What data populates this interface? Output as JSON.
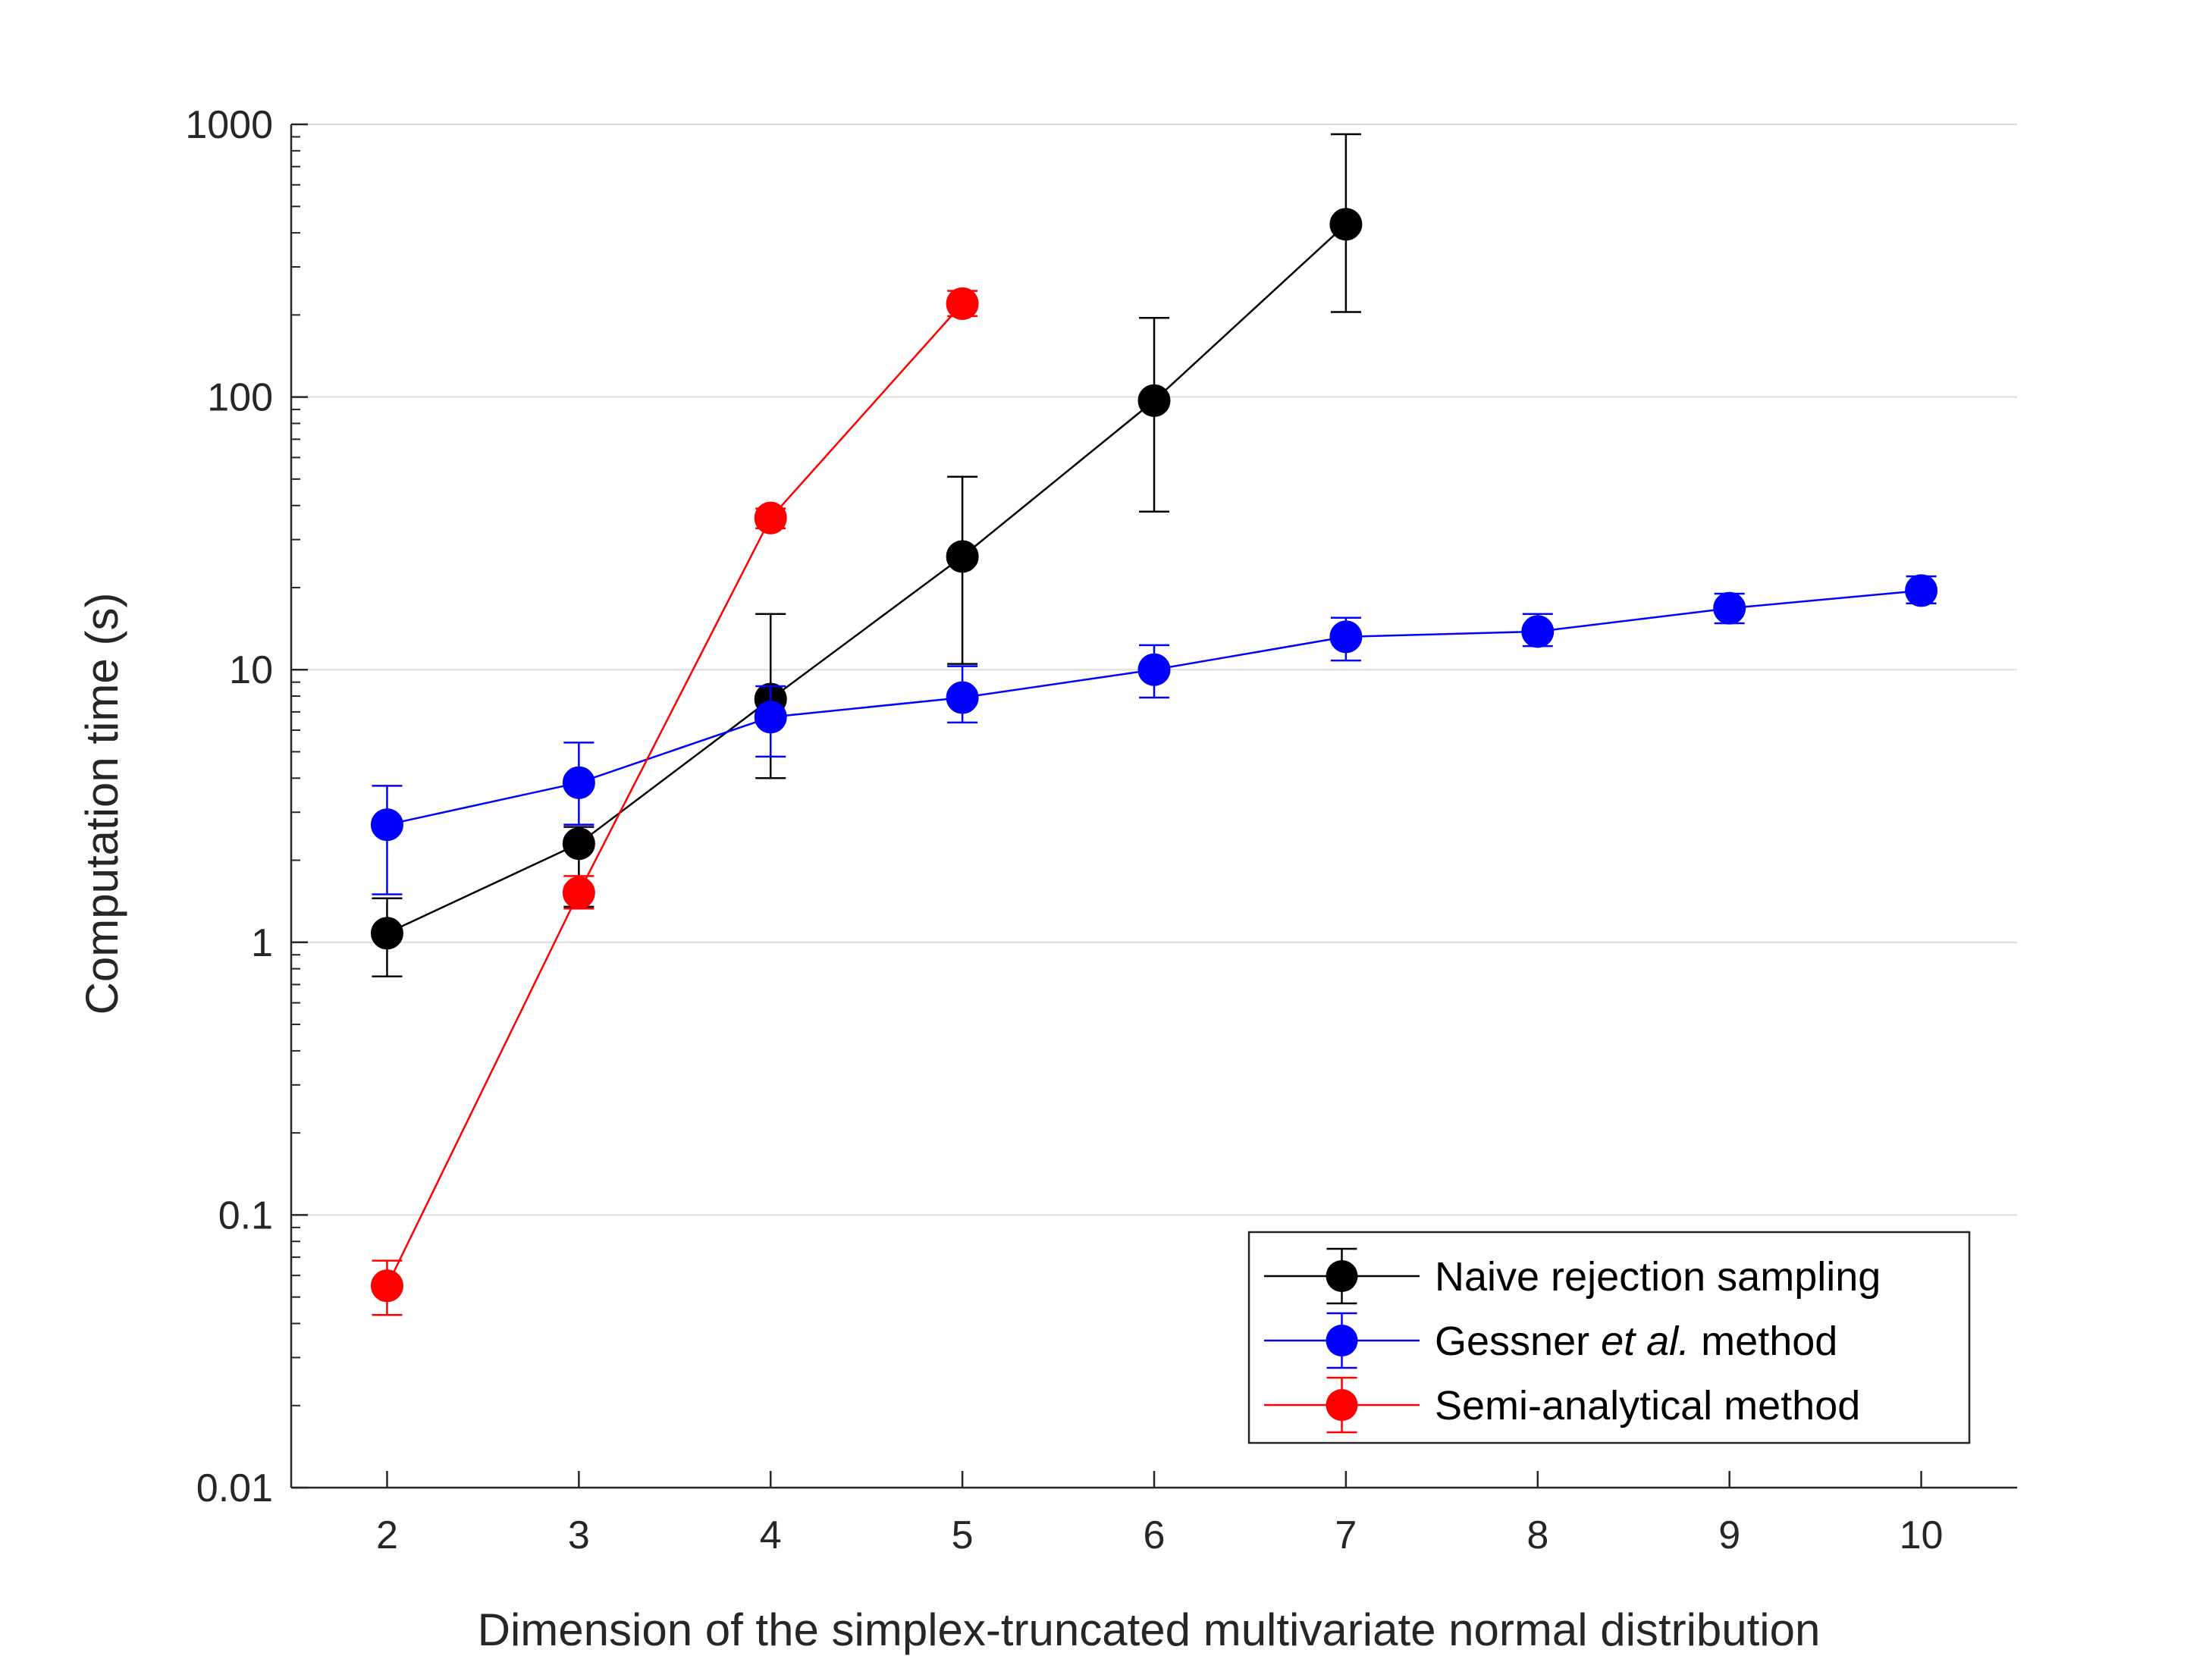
{
  "chart_data": {
    "type": "line",
    "xlabel": "Dimension of the simplex-truncated multivariate normal distribution",
    "ylabel": "Computation time (s)",
    "xlim": [
      1.5,
      10.5
    ],
    "ylim": [
      0.01,
      1000
    ],
    "yscale": "log",
    "xticks": [
      2,
      3,
      4,
      5,
      6,
      7,
      8,
      9,
      10
    ],
    "yticks": [
      0.01,
      0.1,
      1,
      10,
      100,
      1000
    ],
    "ytick_labels": [
      "0.01",
      "0.1",
      "1",
      "10",
      "100",
      "1000"
    ],
    "grid": "horizontal",
    "legend_position": "bottom-right",
    "series": [
      {
        "name": "Naive rejection sampling",
        "color": "#000000",
        "x": [
          2,
          3,
          4,
          5,
          6,
          7
        ],
        "y": [
          1.08,
          2.3,
          7.8,
          26,
          97,
          430
        ],
        "err_low": [
          0.75,
          1.35,
          4.0,
          10.5,
          38,
          205
        ],
        "err_high": [
          1.45,
          2.65,
          16,
          51,
          195,
          920
        ]
      },
      {
        "name": "Gessner et al. method",
        "name_prefix": "Gessner ",
        "name_italic": "et al.",
        "name_suffix": " method",
        "color": "#0000ff",
        "x": [
          2,
          3,
          4,
          5,
          6,
          7,
          8,
          9,
          10
        ],
        "y": [
          2.7,
          3.85,
          6.7,
          7.9,
          10.0,
          13.2,
          13.8,
          16.8,
          19.5
        ],
        "err_low": [
          1.5,
          2.7,
          4.8,
          6.4,
          7.9,
          10.8,
          12.2,
          14.8,
          17.5
        ],
        "err_high": [
          3.75,
          5.4,
          8.7,
          10.3,
          12.3,
          15.5,
          16.0,
          19.0,
          22.0
        ]
      },
      {
        "name": "Semi-analytical method",
        "color": "#ff0000",
        "x": [
          2,
          3,
          4,
          5
        ],
        "y": [
          0.055,
          1.52,
          36,
          220
        ],
        "err_low": [
          0.043,
          1.33,
          33,
          198
        ],
        "err_high": [
          0.068,
          1.75,
          39,
          245
        ]
      }
    ]
  }
}
